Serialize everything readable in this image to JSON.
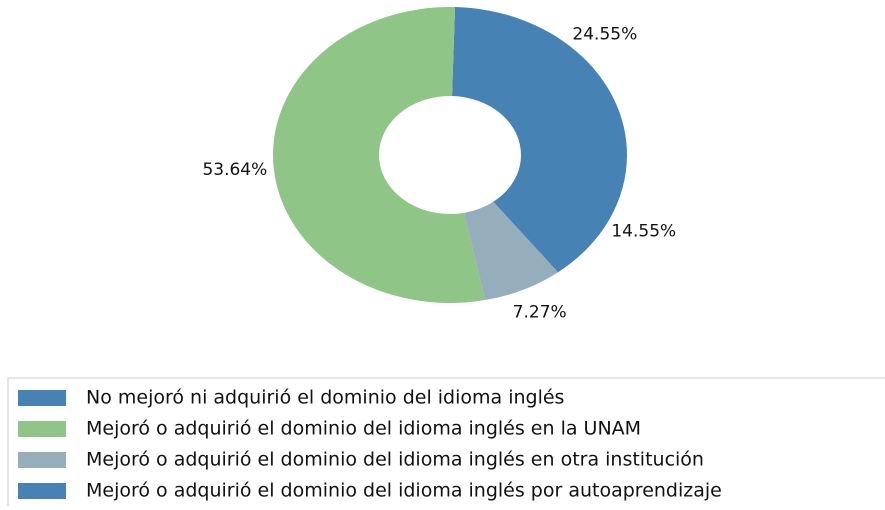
{
  "chart_data": {
    "type": "donut",
    "categories": [
      "No mejoró ni adquirió el dominio del idioma inglés",
      "Mejoró o adquirió el dominio del idioma inglés en la UNAM",
      "Mejoró o adquirió el dominio del idioma inglés en otra institución",
      "Mejoró o adquirió el dominio del idioma inglés por autoaprendizaje"
    ],
    "values": [
      24.55,
      53.64,
      7.27,
      14.55
    ],
    "value_labels": [
      "24.55%",
      "53.64%",
      "7.27%",
      "14.55%"
    ],
    "colors": [
      "#4682b4",
      "#8fc587",
      "#96adbb",
      "#4682b4"
    ]
  }
}
